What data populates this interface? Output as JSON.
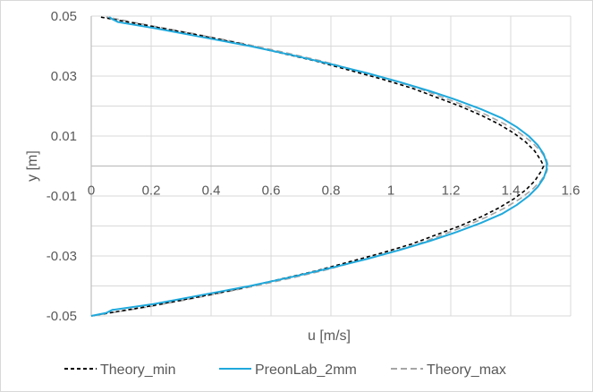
{
  "chart_data": {
    "type": "line",
    "xlabel": "u [m/s]",
    "ylabel": "y [m]",
    "xlim": [
      0,
      1.6
    ],
    "ylim": [
      -0.05,
      0.05
    ],
    "x_ticks": [
      0,
      0.2,
      0.4,
      0.6,
      0.8,
      1,
      1.2,
      1.4,
      1.6
    ],
    "x_tick_labels": [
      "0",
      "0.2",
      "0.4",
      "0.6",
      "0.8",
      "1",
      "1.2",
      "1.4",
      "1.6"
    ],
    "y_ticks": [
      -0.05,
      -0.03,
      -0.01,
      0.01,
      0.03,
      0.05
    ],
    "y_tick_labels": [
      "-0.05",
      "-0.03",
      "-0.01",
      "0.01",
      "0.03",
      "0.05"
    ],
    "x_gridlines": [
      0.2,
      0.4,
      0.6,
      0.8,
      1,
      1.2,
      1.4,
      1.6
    ],
    "y_gridlines": [
      -0.05,
      -0.04,
      -0.03,
      -0.02,
      -0.01,
      0,
      0.01,
      0.02,
      0.03,
      0.04,
      0.05
    ],
    "grid": true,
    "legend_position": "bottom",
    "series": [
      {
        "name": "Theory_min",
        "color": "#000000",
        "dash": "dashed",
        "points": [
          [
            0.0,
            -0.05
          ],
          [
            0.18,
            -0.047
          ],
          [
            0.34,
            -0.044
          ],
          [
            0.49,
            -0.041
          ],
          [
            0.62,
            -0.038
          ],
          [
            0.75,
            -0.035
          ],
          [
            0.86,
            -0.032
          ],
          [
            0.97,
            -0.029
          ],
          [
            1.07,
            -0.026
          ],
          [
            1.15,
            -0.023
          ],
          [
            1.23,
            -0.02
          ],
          [
            1.3,
            -0.017
          ],
          [
            1.36,
            -0.014
          ],
          [
            1.41,
            -0.011
          ],
          [
            1.45,
            -0.008
          ],
          [
            1.48,
            -0.005
          ],
          [
            1.5,
            -0.002
          ],
          [
            1.51,
            0.0
          ],
          [
            1.5,
            0.002
          ],
          [
            1.48,
            0.005
          ],
          [
            1.45,
            0.008
          ],
          [
            1.41,
            0.011
          ],
          [
            1.36,
            0.014
          ],
          [
            1.3,
            0.017
          ],
          [
            1.23,
            0.02
          ],
          [
            1.15,
            0.023
          ],
          [
            1.07,
            0.026
          ],
          [
            0.97,
            0.029
          ],
          [
            0.86,
            0.032
          ],
          [
            0.75,
            0.035
          ],
          [
            0.62,
            0.038
          ],
          [
            0.49,
            0.041
          ],
          [
            0.34,
            0.044
          ],
          [
            0.18,
            0.047
          ],
          [
            0.03,
            0.0497
          ]
        ]
      },
      {
        "name": "PreonLab_2mm",
        "color": "#1fa9dc",
        "dash": "solid",
        "points": [
          [
            0.0,
            -0.05
          ],
          [
            0.05,
            -0.049
          ],
          [
            0.07,
            -0.048
          ],
          [
            0.21,
            -0.046
          ],
          [
            0.37,
            -0.043
          ],
          [
            0.53,
            -0.04
          ],
          [
            0.67,
            -0.037
          ],
          [
            0.8,
            -0.034
          ],
          [
            0.92,
            -0.031
          ],
          [
            1.03,
            -0.028
          ],
          [
            1.13,
            -0.025
          ],
          [
            1.22,
            -0.022
          ],
          [
            1.3,
            -0.019
          ],
          [
            1.37,
            -0.016
          ],
          [
            1.42,
            -0.013
          ],
          [
            1.46,
            -0.01
          ],
          [
            1.49,
            -0.007
          ],
          [
            1.51,
            -0.004
          ],
          [
            1.52,
            -0.001
          ],
          [
            1.52,
            0.001
          ],
          [
            1.51,
            0.004
          ],
          [
            1.49,
            0.007
          ],
          [
            1.46,
            0.01
          ],
          [
            1.42,
            0.013
          ],
          [
            1.37,
            0.016
          ],
          [
            1.3,
            0.019
          ],
          [
            1.22,
            0.022
          ],
          [
            1.13,
            0.025
          ],
          [
            1.03,
            0.028
          ],
          [
            0.92,
            0.031
          ],
          [
            0.8,
            0.034
          ],
          [
            0.67,
            0.037
          ],
          [
            0.53,
            0.04
          ],
          [
            0.37,
            0.043
          ],
          [
            0.21,
            0.046
          ],
          [
            0.09,
            0.048
          ],
          [
            0.07,
            0.049
          ],
          [
            0.06,
            0.0497
          ]
        ]
      },
      {
        "name": "Theory_max",
        "color": "#a6a6a6",
        "dash": "dashed",
        "points": [
          [
            0.0,
            -0.05
          ],
          [
            0.19,
            -0.047
          ],
          [
            0.35,
            -0.044
          ],
          [
            0.5,
            -0.041
          ],
          [
            0.64,
            -0.038
          ],
          [
            0.77,
            -0.035
          ],
          [
            0.88,
            -0.032
          ],
          [
            0.99,
            -0.029
          ],
          [
            1.09,
            -0.026
          ],
          [
            1.17,
            -0.023
          ],
          [
            1.25,
            -0.02
          ],
          [
            1.32,
            -0.017
          ],
          [
            1.38,
            -0.014
          ],
          [
            1.43,
            -0.011
          ],
          [
            1.47,
            -0.008
          ],
          [
            1.5,
            -0.005
          ],
          [
            1.52,
            -0.002
          ],
          [
            1.525,
            0.0
          ],
          [
            1.52,
            0.002
          ],
          [
            1.5,
            0.005
          ],
          [
            1.47,
            0.008
          ],
          [
            1.43,
            0.011
          ],
          [
            1.38,
            0.014
          ],
          [
            1.32,
            0.017
          ],
          [
            1.25,
            0.02
          ],
          [
            1.17,
            0.023
          ],
          [
            1.09,
            0.026
          ],
          [
            0.99,
            0.029
          ],
          [
            0.88,
            0.032
          ],
          [
            0.77,
            0.035
          ],
          [
            0.64,
            0.038
          ],
          [
            0.5,
            0.041
          ],
          [
            0.35,
            0.044
          ],
          [
            0.19,
            0.047
          ],
          [
            0.05,
            0.0497
          ]
        ]
      }
    ]
  }
}
